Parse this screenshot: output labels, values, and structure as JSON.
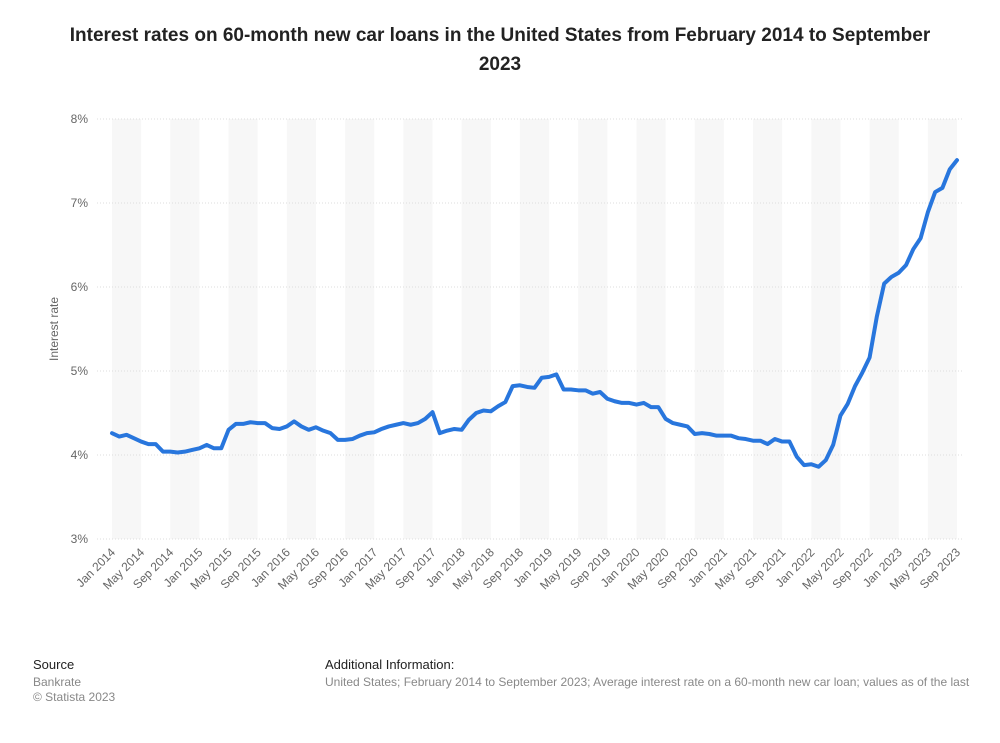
{
  "chart_data": {
    "type": "line",
    "title": "Interest rates on 60-month new car loans in the United States from February 2014 to September 2023",
    "y_label": "Interest rate",
    "x": [
      "Jan 2014",
      null,
      null,
      null,
      "May 2014",
      null,
      null,
      null,
      "Sep 2014",
      null,
      null,
      null,
      "Jan 2015",
      null,
      null,
      null,
      "May 2015",
      null,
      null,
      null,
      "Sep 2015",
      null,
      null,
      null,
      "Jan 2016",
      null,
      null,
      null,
      "May 2016",
      null,
      null,
      null,
      "Sep 2016",
      null,
      null,
      null,
      "Jan 2017",
      null,
      null,
      null,
      "May 2017",
      null,
      null,
      null,
      "Sep 2017",
      null,
      null,
      null,
      "Jan 2018",
      null,
      null,
      null,
      "May 2018",
      null,
      null,
      null,
      "Sep 2018",
      null,
      null,
      null,
      "Jan 2019",
      null,
      null,
      null,
      "May 2019",
      null,
      null,
      null,
      "Sep 2019",
      null,
      null,
      null,
      "Jan 2020",
      null,
      null,
      null,
      "May 2020",
      null,
      null,
      null,
      "Sep 2020",
      null,
      null,
      null,
      "Jan 2021",
      null,
      null,
      null,
      "May 2021",
      null,
      null,
      null,
      "Sep 2021",
      null,
      null,
      null,
      "Jan 2022",
      null,
      null,
      null,
      "May 2022",
      null,
      null,
      null,
      "Sep 2022",
      null,
      null,
      null,
      "Jan 2023",
      null,
      null,
      null,
      "May 2023",
      null,
      null,
      null,
      "Sep 2023"
    ],
    "series": [
      {
        "name": "Interest rate",
        "color": "#2876dd",
        "values": [
          4.26,
          4.22,
          4.24,
          4.2,
          4.16,
          4.13,
          4.13,
          4.04,
          4.04,
          4.03,
          4.04,
          4.06,
          4.08,
          4.12,
          4.08,
          4.08,
          4.3,
          4.37,
          4.37,
          4.39,
          4.38,
          4.38,
          4.32,
          4.31,
          4.34,
          4.4,
          4.34,
          4.3,
          4.33,
          4.29,
          4.26,
          4.18,
          4.18,
          4.19,
          4.23,
          4.26,
          4.27,
          4.31,
          4.34,
          4.36,
          4.38,
          4.36,
          4.38,
          4.43,
          4.51,
          4.26,
          4.29,
          4.31,
          4.3,
          4.42,
          4.5,
          4.53,
          4.52,
          4.58,
          4.63,
          4.82,
          4.83,
          4.81,
          4.8,
          4.92,
          4.93,
          4.96,
          4.78,
          4.78,
          4.77,
          4.77,
          4.73,
          4.75,
          4.67,
          4.64,
          4.62,
          4.62,
          4.6,
          4.62,
          4.57,
          4.57,
          4.43,
          4.38,
          4.36,
          4.34,
          4.25,
          4.26,
          4.25,
          4.23,
          4.23,
          4.23,
          4.2,
          4.19,
          4.17,
          4.17,
          4.13,
          4.19,
          4.16,
          4.16,
          3.98,
          3.88,
          3.89,
          3.86,
          3.94,
          4.12,
          4.47,
          4.61,
          4.82,
          4.98,
          5.16,
          5.65,
          6.04,
          6.12,
          6.17,
          6.26,
          6.45,
          6.58,
          6.89,
          7.13,
          7.18,
          7.4,
          7.51
        ]
      }
    ],
    "ylim": [
      3,
      8
    ],
    "yticks": [
      {
        "value": 3,
        "label": "3%"
      },
      {
        "value": 4,
        "label": "4%"
      },
      {
        "value": 5,
        "label": "5%"
      },
      {
        "value": 6,
        "label": "6%"
      },
      {
        "value": 7,
        "label": "7%"
      },
      {
        "value": 8,
        "label": "8%"
      }
    ],
    "grid": true
  },
  "footer": {
    "source_heading": "Source",
    "source": "Bankrate",
    "copyright": "© Statista 2023",
    "info_heading": "Additional Information:",
    "info": "United States; February 2014 to September 2023; Average interest rate on a 60-month new car loan; values as of the last"
  }
}
